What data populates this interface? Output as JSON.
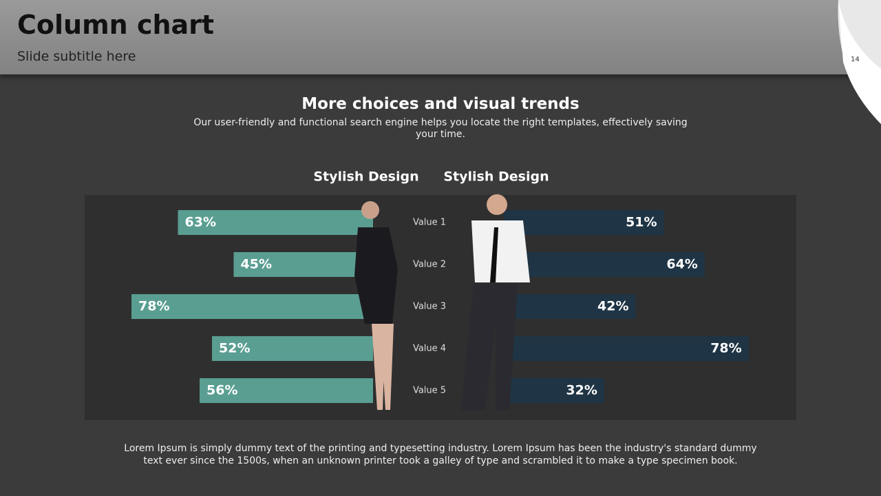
{
  "slide": {
    "title": "Column chart",
    "subtitle": "Slide subtitle here",
    "page_number": 14,
    "footnote": "Lorem Ipsum is simply dummy text of the printing and typesetting industry. Lorem Ipsum has been the industry's standard dummy text ever since the 1500s, when an unknown printer took a galley of type and scrambled it to make a type specimen book."
  },
  "chart_data": {
    "type": "bar",
    "title": "More choices and visual trends",
    "subtitle": "Our user-friendly and functional search engine helps you locate the right templates, effectively saving your time.",
    "categories": [
      "Value 1",
      "Value 2",
      "Value 3",
      "Value 4",
      "Value 5"
    ],
    "series": [
      {
        "name": "Stylish Design",
        "color": "#5a9e92",
        "values": [
          63,
          45,
          78,
          52,
          56
        ],
        "value_labels": [
          "63%",
          "45%",
          "78%",
          "52%",
          "56%"
        ]
      },
      {
        "name": "Stylish Design",
        "color": "#1f3444",
        "values": [
          51,
          64,
          42,
          78,
          32
        ],
        "value_labels": [
          "51%",
          "64%",
          "42%",
          "78%",
          "32%"
        ]
      }
    ]
  }
}
